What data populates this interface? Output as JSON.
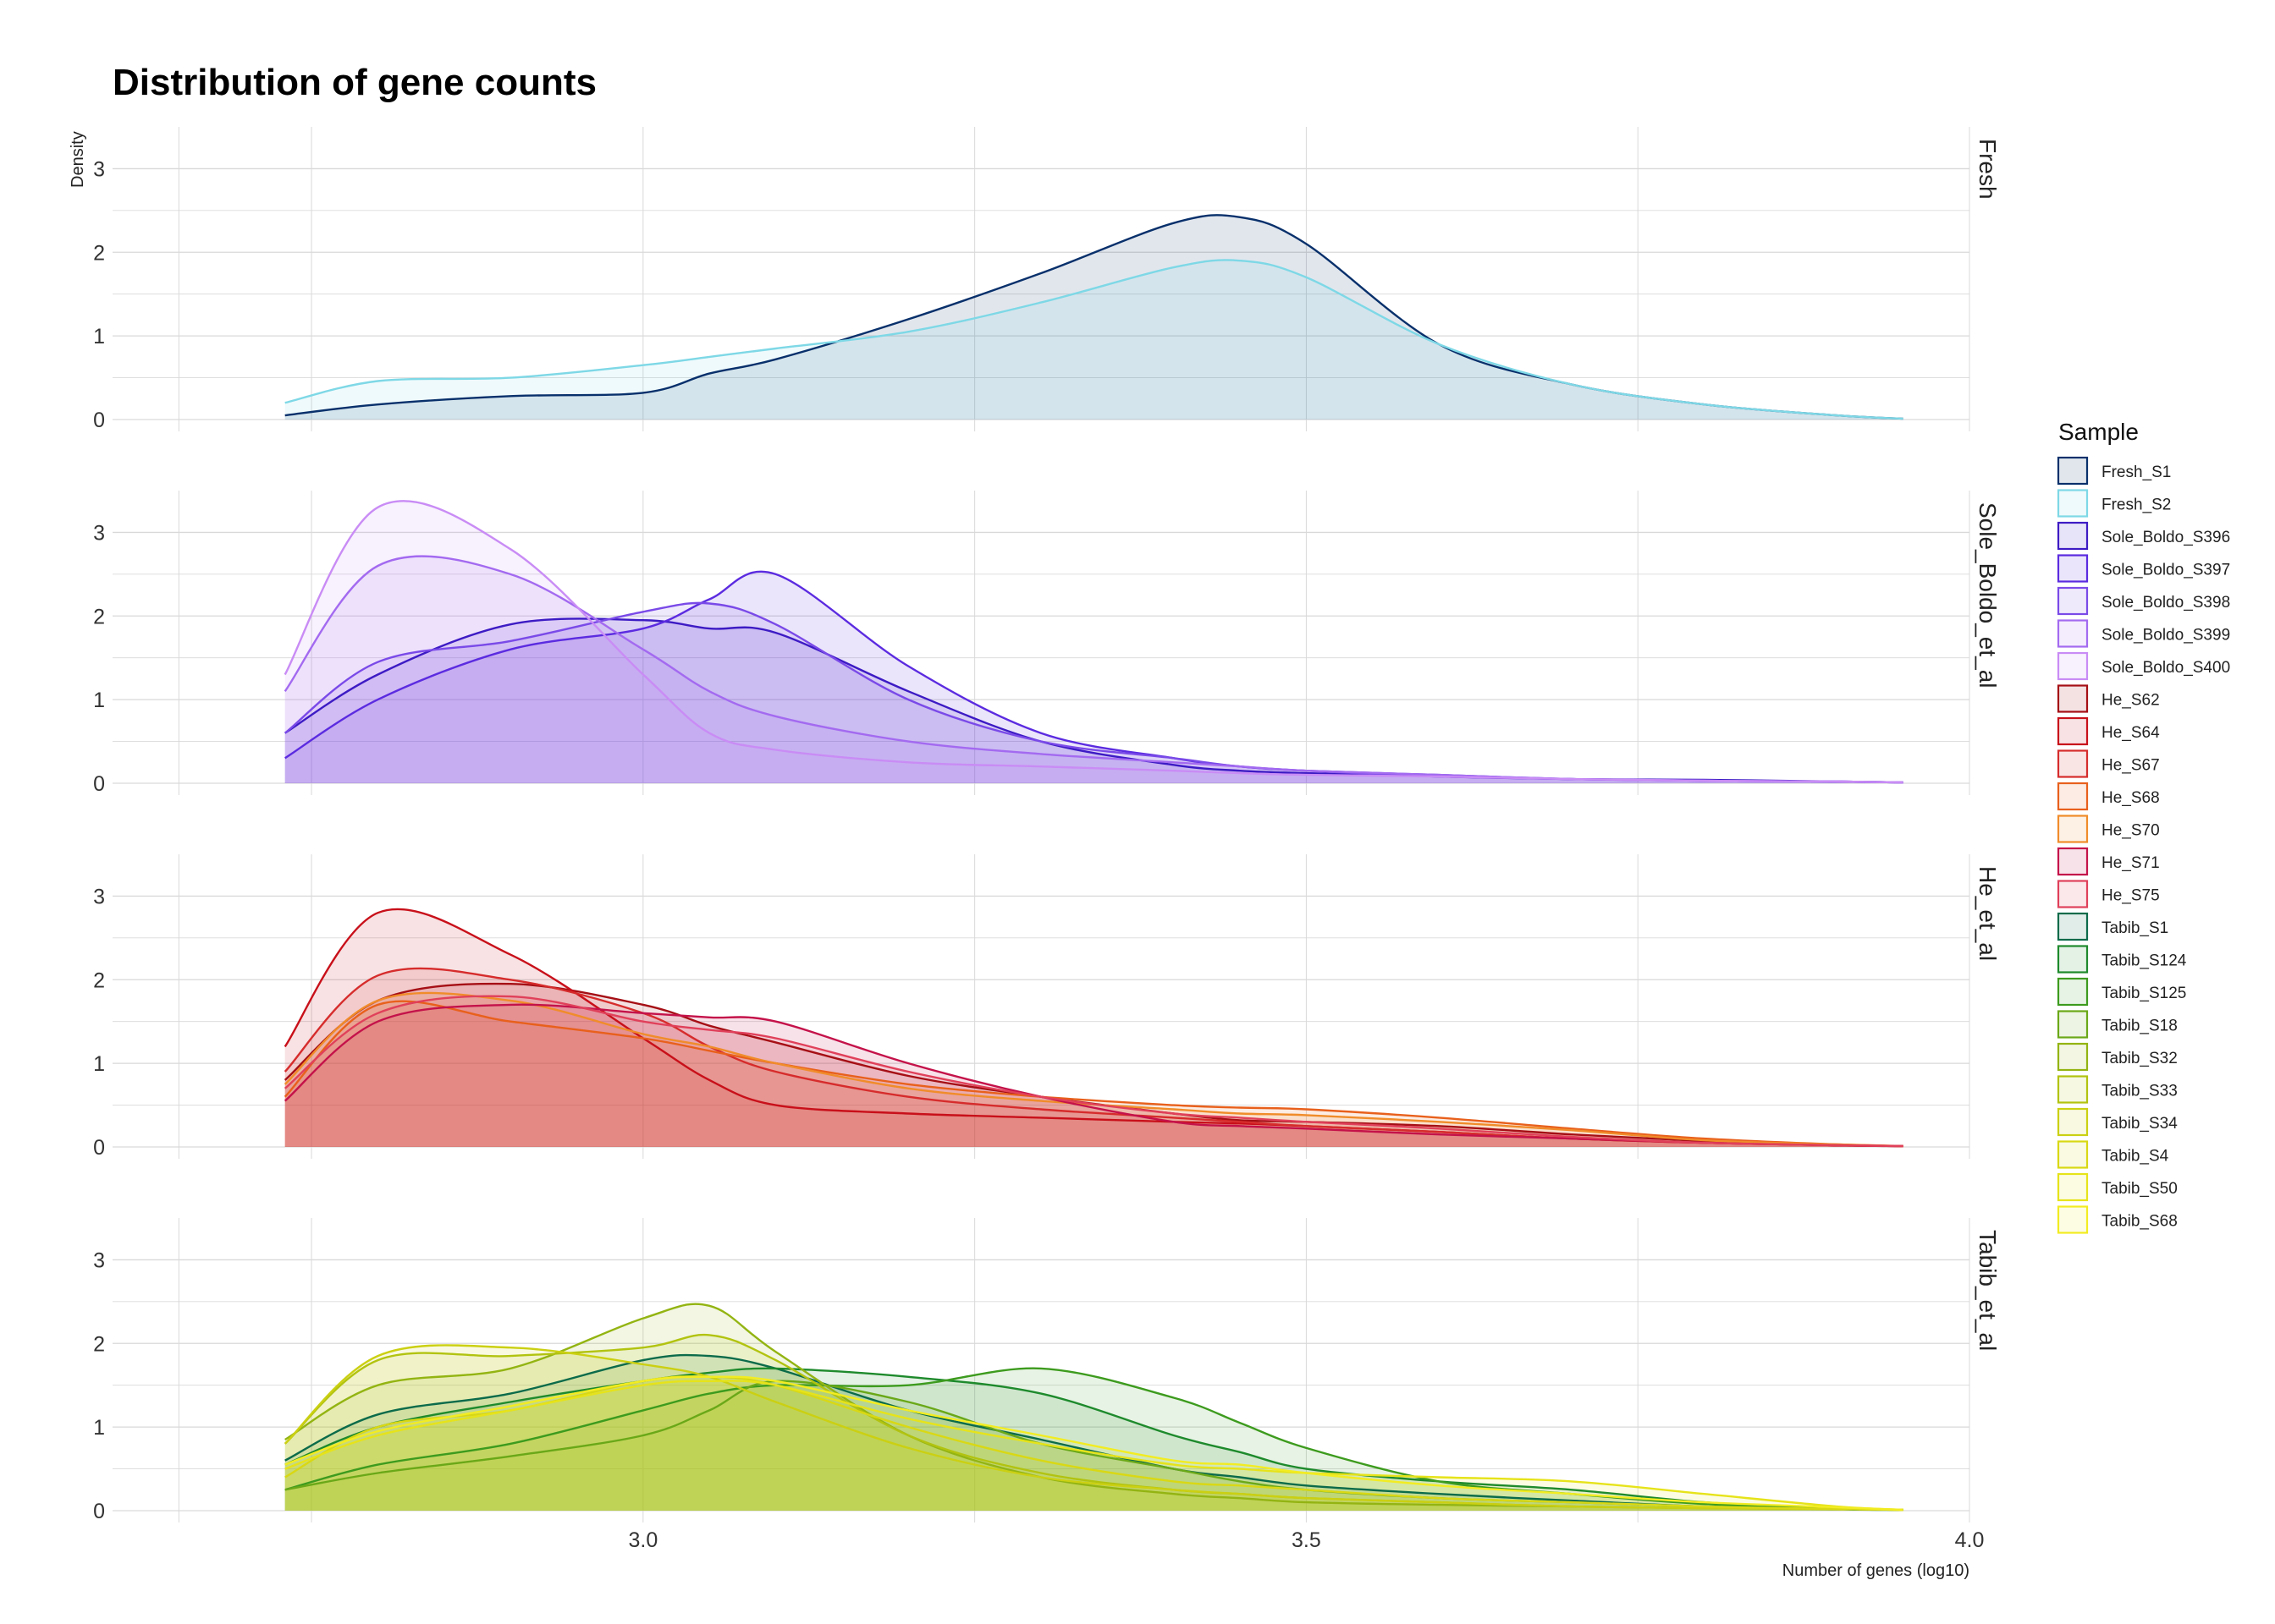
{
  "chart_data": {
    "type": "area",
    "title": "Distribution of gene counts",
    "xlabel": "Number of genes (log10)",
    "ylabel": "Density",
    "xlim": [
      2.6,
      4.0
    ],
    "ylim": [
      0,
      3.5
    ],
    "x_ticks": [
      "3.0",
      "3.5",
      "4.0"
    ],
    "y_ticks": [
      "0",
      "1",
      "2",
      "3"
    ],
    "grid": true,
    "legend_title": "Sample",
    "legend_position": "right",
    "x": [
      2.73,
      2.8,
      2.9,
      3.0,
      3.05,
      3.1,
      3.2,
      3.3,
      3.4,
      3.45,
      3.5,
      3.6,
      3.7,
      3.8,
      3.9,
      3.95
    ],
    "panels": [
      {
        "label": "Fresh",
        "series": [
          {
            "name": "Fresh_S1",
            "color": "#08306b",
            "values": [
              0.05,
              0.18,
              0.28,
              0.32,
              0.55,
              0.72,
              1.2,
              1.75,
              2.35,
              2.42,
              2.1,
              0.9,
              0.42,
              0.18,
              0.05,
              0.01
            ]
          },
          {
            "name": "Fresh_S2",
            "color": "#7ed8e6",
            "values": [
              0.2,
              0.46,
              0.5,
              0.65,
              0.75,
              0.85,
              1.05,
              1.4,
              1.82,
              1.9,
              1.7,
              0.9,
              0.42,
              0.18,
              0.05,
              0.01
            ]
          }
        ]
      },
      {
        "label": "Sole_Boldo_et_al",
        "series": [
          {
            "name": "Sole_Boldo_S396",
            "color": "#3d1bc4",
            "values": [
              0.6,
              1.3,
              1.9,
              1.95,
              1.85,
              1.8,
              1.1,
              0.5,
              0.22,
              0.15,
              0.12,
              0.08,
              0.05,
              0.04,
              0.02,
              0.01
            ]
          },
          {
            "name": "Sole_Boldo_S397",
            "color": "#5b2be0",
            "values": [
              0.3,
              1.0,
              1.6,
              1.85,
              2.2,
              2.5,
              1.4,
              0.6,
              0.3,
              0.2,
              0.15,
              0.1,
              0.05,
              0.03,
              0.02,
              0.01
            ]
          },
          {
            "name": "Sole_Boldo_S398",
            "color": "#7a4ae8",
            "values": [
              0.6,
              1.45,
              1.7,
              2.05,
              2.15,
              1.9,
              1.0,
              0.5,
              0.3,
              0.2,
              0.15,
              0.08,
              0.05,
              0.03,
              0.02,
              0.01
            ]
          },
          {
            "name": "Sole_Boldo_S399",
            "color": "#a36af0",
            "values": [
              1.1,
              2.6,
              2.5,
              1.6,
              1.1,
              0.8,
              0.5,
              0.35,
              0.25,
              0.2,
              0.15,
              0.1,
              0.05,
              0.03,
              0.02,
              0.01
            ]
          },
          {
            "name": "Sole_Boldo_S400",
            "color": "#c98cf5",
            "values": [
              1.3,
              3.3,
              2.8,
              1.3,
              0.6,
              0.4,
              0.25,
              0.2,
              0.15,
              0.12,
              0.1,
              0.08,
              0.05,
              0.03,
              0.02,
              0.01
            ]
          }
        ]
      },
      {
        "label": "He_et_al",
        "series": [
          {
            "name": "He_S62",
            "color": "#a50f15",
            "values": [
              0.8,
              1.75,
              1.95,
              1.7,
              1.45,
              1.25,
              0.85,
              0.6,
              0.4,
              0.32,
              0.3,
              0.25,
              0.15,
              0.07,
              0.02,
              0.01
            ]
          },
          {
            "name": "He_S64",
            "color": "#c8101a",
            "values": [
              1.2,
              2.8,
              2.3,
              1.3,
              0.8,
              0.5,
              0.4,
              0.35,
              0.3,
              0.28,
              0.25,
              0.18,
              0.1,
              0.05,
              0.02,
              0.01
            ]
          },
          {
            "name": "He_S67",
            "color": "#d62c2c",
            "values": [
              0.9,
              2.05,
              2.0,
              1.6,
              1.2,
              0.9,
              0.6,
              0.45,
              0.35,
              0.3,
              0.25,
              0.18,
              0.1,
              0.05,
              0.02,
              0.01
            ]
          },
          {
            "name": "He_S68",
            "color": "#e8601c",
            "values": [
              0.6,
              1.7,
              1.5,
              1.3,
              1.15,
              1.0,
              0.75,
              0.6,
              0.5,
              0.47,
              0.45,
              0.35,
              0.22,
              0.1,
              0.03,
              0.01
            ]
          },
          {
            "name": "He_S70",
            "color": "#f08c2a",
            "values": [
              0.75,
              1.75,
              1.75,
              1.35,
              1.2,
              1.0,
              0.7,
              0.55,
              0.45,
              0.4,
              0.38,
              0.3,
              0.2,
              0.08,
              0.03,
              0.01
            ]
          },
          {
            "name": "He_S71",
            "color": "#c4124a",
            "values": [
              0.55,
              1.5,
              1.7,
              1.6,
              1.55,
              1.5,
              1.0,
              0.6,
              0.3,
              0.25,
              0.22,
              0.15,
              0.1,
              0.05,
              0.02,
              0.01
            ]
          },
          {
            "name": "He_S75",
            "color": "#e0405a",
            "values": [
              0.7,
              1.6,
              1.8,
              1.5,
              1.4,
              1.3,
              0.9,
              0.6,
              0.4,
              0.35,
              0.3,
              0.22,
              0.12,
              0.05,
              0.02,
              0.01
            ]
          }
        ]
      },
      {
        "label": "Tabib_et_al",
        "series": [
          {
            "name": "Tabib_S1",
            "color": "#0b6b4a",
            "values": [
              0.6,
              1.15,
              1.4,
              1.8,
              1.85,
              1.7,
              1.2,
              0.85,
              0.5,
              0.4,
              0.3,
              0.2,
              0.12,
              0.05,
              0.02,
              0.01
            ]
          },
          {
            "name": "Tabib_S124",
            "color": "#1e8a2c",
            "values": [
              0.55,
              1.0,
              1.3,
              1.55,
              1.65,
              1.7,
              1.6,
              1.4,
              0.9,
              0.7,
              0.5,
              0.35,
              0.25,
              0.1,
              0.02,
              0.01
            ]
          },
          {
            "name": "Tabib_S125",
            "color": "#3d9b1e",
            "values": [
              0.25,
              0.55,
              0.8,
              1.2,
              1.4,
              1.5,
              1.5,
              1.7,
              1.35,
              1.05,
              0.75,
              0.35,
              0.2,
              0.08,
              0.02,
              0.01
            ]
          },
          {
            "name": "Tabib_S18",
            "color": "#6aa818",
            "values": [
              0.25,
              0.45,
              0.65,
              0.9,
              1.2,
              1.55,
              1.3,
              0.8,
              0.5,
              0.35,
              0.25,
              0.15,
              0.1,
              0.05,
              0.02,
              0.01
            ]
          },
          {
            "name": "Tabib_S32",
            "color": "#93b412",
            "values": [
              0.85,
              1.5,
              1.7,
              2.3,
              2.45,
              1.9,
              0.9,
              0.4,
              0.2,
              0.15,
              0.1,
              0.07,
              0.05,
              0.03,
              0.02,
              0.01
            ]
          },
          {
            "name": "Tabib_S33",
            "color": "#b2c310",
            "values": [
              0.8,
              1.8,
              1.85,
              1.95,
              2.1,
              1.8,
              0.9,
              0.45,
              0.25,
              0.2,
              0.15,
              0.1,
              0.05,
              0.03,
              0.02,
              0.01
            ]
          },
          {
            "name": "Tabib_S34",
            "color": "#cbd012",
            "values": [
              0.8,
              1.85,
              1.95,
              1.75,
              1.6,
              1.3,
              0.75,
              0.4,
              0.25,
              0.2,
              0.15,
              0.1,
              0.05,
              0.03,
              0.02,
              0.01
            ]
          },
          {
            "name": "Tabib_S4",
            "color": "#d9d814",
            "values": [
              0.4,
              1.0,
              1.2,
              1.55,
              1.6,
              1.5,
              1.0,
              0.6,
              0.35,
              0.3,
              0.25,
              0.15,
              0.1,
              0.05,
              0.02,
              0.01
            ]
          },
          {
            "name": "Tabib_S50",
            "color": "#e6e31a",
            "values": [
              0.5,
              0.9,
              1.2,
              1.5,
              1.55,
              1.5,
              1.1,
              0.8,
              0.55,
              0.5,
              0.45,
              0.4,
              0.35,
              0.2,
              0.05,
              0.01
            ]
          },
          {
            "name": "Tabib_S68",
            "color": "#f2ec22",
            "values": [
              0.55,
              0.95,
              1.25,
              1.55,
              1.6,
              1.55,
              1.2,
              0.9,
              0.6,
              0.55,
              0.45,
              0.3,
              0.2,
              0.1,
              0.04,
              0.01
            ]
          }
        ]
      }
    ]
  }
}
